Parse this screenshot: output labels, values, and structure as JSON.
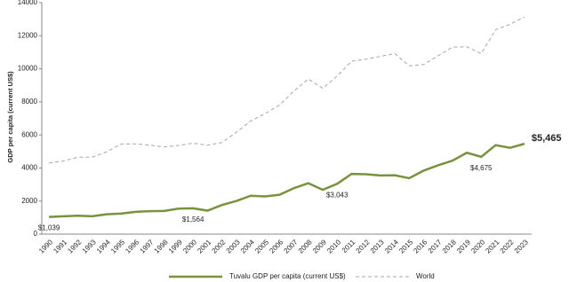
{
  "chart_data": {
    "type": "line",
    "y_label": "GDP per capita (current US$)",
    "categories": [
      "1990",
      "1991",
      "1992",
      "1993",
      "1994",
      "1995",
      "1996",
      "1997",
      "1998",
      "1999",
      "2000",
      "2001",
      "2002",
      "2003",
      "2004",
      "2005",
      "2006",
      "2007",
      "2008",
      "2009",
      "2010",
      "2011",
      "2012",
      "2013",
      "2014",
      "2015",
      "2016",
      "2017",
      "2018",
      "2019",
      "2020",
      "2021",
      "2022",
      "2023"
    ],
    "series": [
      {
        "name": "Tuvalu GDP per capita (current US$)",
        "color": "#77933c",
        "dash": false,
        "values": [
          1039,
          1080,
          1110,
          1080,
          1200,
          1240,
          1350,
          1390,
          1400,
          1540,
          1564,
          1420,
          1760,
          2000,
          2320,
          2280,
          2380,
          2780,
          3080,
          2680,
          3043,
          3640,
          3620,
          3550,
          3560,
          3380,
          3840,
          4160,
          4440,
          4920,
          4675,
          5380,
          5220,
          5465
        ],
        "value_labels": [
          "$1,039",
          null,
          null,
          null,
          null,
          null,
          null,
          null,
          null,
          null,
          "$1,564",
          null,
          null,
          null,
          null,
          null,
          null,
          null,
          null,
          null,
          "$3,043",
          null,
          null,
          null,
          null,
          null,
          null,
          null,
          null,
          null,
          "$4,675",
          null,
          null,
          "$5,465"
        ]
      },
      {
        "name": "World",
        "color": "#a6a6a6",
        "dash": true,
        "values": [
          4300,
          4420,
          4650,
          4660,
          4970,
          5450,
          5460,
          5380,
          5270,
          5370,
          5500,
          5380,
          5540,
          6160,
          6840,
          7290,
          7800,
          8660,
          9380,
          8820,
          9560,
          10460,
          10580,
          10750,
          10920,
          10180,
          10260,
          10780,
          11310,
          11330,
          10920,
          12370,
          12690,
          13140
        ]
      }
    ],
    "ylim": [
      0,
      14000
    ],
    "yticks": [
      0,
      2000,
      4000,
      6000,
      8000,
      10000,
      12000,
      14000
    ],
    "grid": false
  }
}
